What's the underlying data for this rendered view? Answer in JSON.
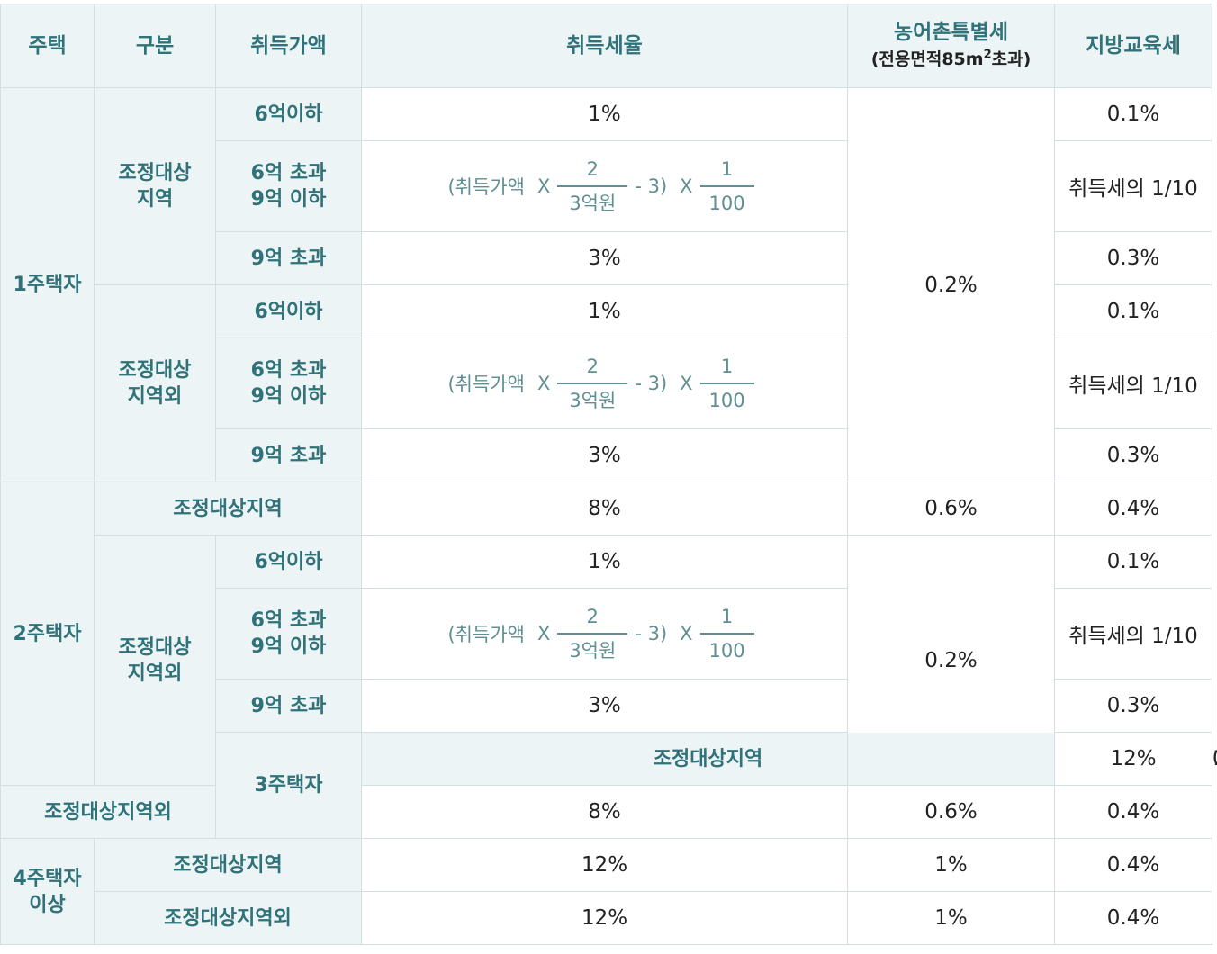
{
  "header": {
    "house": "주택",
    "category": "구분",
    "price": "취득가액",
    "rate": "취득세율",
    "rural_line1": "농어촌특별세",
    "rural_line2_pre": "(전용면적85m",
    "rural_line2_sup": "2",
    "rural_line2_post": "초과)",
    "edu": "지방교육세"
  },
  "labels": {
    "one_house": "1주택자",
    "two_house": "2주택자",
    "three_house": "3주택자",
    "four_house_line1": "4주택자",
    "four_house_line2": "이상",
    "adj_area_line1": "조정대상",
    "adj_area_line2": "지역",
    "nonadj_area_line1": "조정대상",
    "nonadj_area_line2": "지역외",
    "adj_area": "조정대상지역",
    "nonadj_area": "조정대상지역외",
    "under6": "6억이하",
    "over6_line1": "6억 초과",
    "over6_line2": "9억 이하",
    "over9": "9억 초과"
  },
  "formula": {
    "prefix": "(취득가액",
    "times1": "X",
    "num1": "2",
    "den1": "3억원",
    "minus": "- 3)",
    "times2": "X",
    "num2": "1",
    "den2": "100"
  },
  "values": {
    "r1": "1%",
    "r3": "3%",
    "r8": "8%",
    "r12": "12%",
    "rural_02": "0.2%",
    "rural_06": "0.6%",
    "rural_1": "1%",
    "edu_01": "0.1%",
    "edu_tenth": "취득세의 1/10",
    "edu_03": "0.3%",
    "edu_04": "0.4%"
  }
}
